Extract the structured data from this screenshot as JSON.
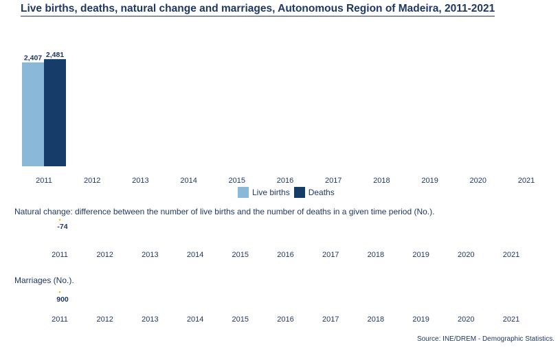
{
  "title": "Live births, deaths, natural change and marriages, Autonomous Region of Madeira, 2011-2021",
  "colors": {
    "live_births": "#8ab8d8",
    "deaths": "#163d6a",
    "text": "#1f3864",
    "marker": "#f0b400"
  },
  "legend": {
    "live_births": "Live births",
    "deaths": "Deaths"
  },
  "natural_change_label": "Natural change: difference between the number of live births and the number of deaths in a given time period (No.).",
  "marriages_label": "Marriages (No.).",
  "source": "Source: INE/DREM - Demographic Statistics.",
  "chart_data": [
    {
      "type": "bar",
      "categories": [
        "2011",
        "2012",
        "2013",
        "2014",
        "2015",
        "2016",
        "2017",
        "2018",
        "2019",
        "2020",
        "2021"
      ],
      "series": [
        {
          "name": "Live births",
          "values": [
            2407,
            null,
            null,
            null,
            null,
            null,
            null,
            null,
            null,
            null,
            null
          ],
          "labels": [
            "2,407"
          ]
        },
        {
          "name": "Deaths",
          "values": [
            2481,
            null,
            null,
            null,
            null,
            null,
            null,
            null,
            null,
            null,
            null
          ],
          "labels": [
            "2,481"
          ]
        }
      ],
      "ylim": [
        0,
        2500
      ]
    },
    {
      "type": "line",
      "categories": [
        "2011",
        "2012",
        "2013",
        "2014",
        "2015",
        "2016",
        "2017",
        "2018",
        "2019",
        "2020",
        "2021"
      ],
      "values": [
        -74,
        null,
        null,
        null,
        null,
        null,
        null,
        null,
        null,
        null,
        null
      ],
      "labels": [
        "-74"
      ]
    },
    {
      "type": "line",
      "categories": [
        "2011",
        "2012",
        "2013",
        "2014",
        "2015",
        "2016",
        "2017",
        "2018",
        "2019",
        "2020",
        "2021"
      ],
      "values": [
        900,
        null,
        null,
        null,
        null,
        null,
        null,
        null,
        null,
        null,
        null
      ],
      "labels": [
        "900"
      ]
    }
  ]
}
